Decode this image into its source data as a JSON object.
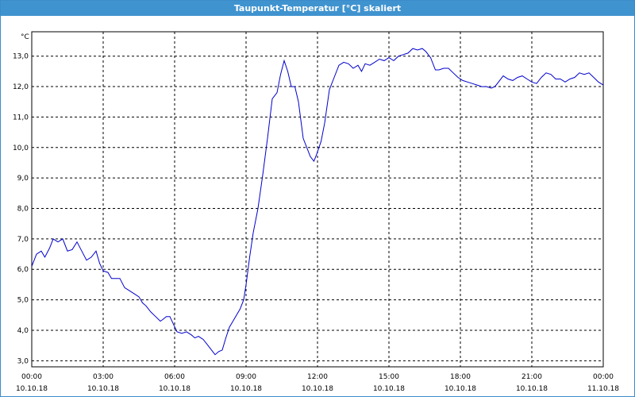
{
  "window": {
    "title": "Taupunkt-Temperatur [°C] skaliert"
  },
  "chart_data": {
    "type": "line",
    "title": "Taupunkt-Temperatur [°C] skaliert",
    "ylabel": "°C",
    "xlabel": "",
    "ylim": [
      2.8,
      13.8
    ],
    "xlim": [
      0,
      24
    ],
    "grid": true,
    "y_ticks": [
      "3,0",
      "4,0",
      "5,0",
      "6,0",
      "7,0",
      "8,0",
      "9,0",
      "10,0",
      "11,0",
      "12,0",
      "13,0"
    ],
    "x_ticks": [
      {
        "time": "00:00",
        "date": "10.10.18"
      },
      {
        "time": "03:00",
        "date": "10.10.18"
      },
      {
        "time": "06:00",
        "date": "10.10.18"
      },
      {
        "time": "09:00",
        "date": "10.10.18"
      },
      {
        "time": "12:00",
        "date": "10.10.18"
      },
      {
        "time": "15:00",
        "date": "10.10.18"
      },
      {
        "time": "18:00",
        "date": "10.10.18"
      },
      {
        "time": "21:00",
        "date": "10.10.18"
      },
      {
        "time": "00:00",
        "date": "11.10.18"
      }
    ],
    "colors": {
      "line": "#0000cc",
      "title_bar": "#3f93cf"
    },
    "series": [
      {
        "x": [
          0,
          0.2,
          0.4,
          0.55,
          0.75,
          0.9,
          1.1,
          1.3,
          1.5,
          1.7,
          1.9,
          2.1,
          2.3,
          2.5,
          2.7,
          2.85,
          3.0,
          3.2,
          3.35,
          3.5,
          3.7,
          3.9,
          4.1,
          4.3,
          4.5,
          4.65,
          4.8,
          5.0,
          5.2,
          5.4,
          5.5,
          5.65,
          5.8,
          5.95,
          6.1,
          6.3,
          6.5,
          6.7,
          6.85,
          7.0,
          7.2,
          7.4,
          7.6,
          7.7,
          7.85,
          8.0,
          8.15,
          8.3,
          8.45,
          8.6,
          8.75,
          8.9,
          9.0,
          9.15,
          9.3,
          9.5,
          9.7,
          9.9,
          10.1,
          10.3,
          10.45,
          10.6,
          10.75,
          10.9,
          11.05,
          11.2,
          11.4,
          11.55,
          11.7,
          11.85,
          11.95,
          12.15,
          12.3,
          12.5,
          12.7,
          12.9,
          13.1,
          13.3,
          13.5,
          13.7,
          13.85,
          14.0,
          14.2,
          14.4,
          14.6,
          14.8,
          15.0,
          15.2,
          15.4,
          15.6,
          15.8,
          16.0,
          16.2,
          16.4,
          16.55,
          16.75,
          16.95,
          17.1,
          17.3,
          17.5,
          17.7,
          17.9,
          18.1,
          18.3,
          18.5,
          18.7,
          18.9,
          19.1,
          19.3,
          19.45,
          19.6,
          19.8,
          20.0,
          20.2,
          20.4,
          20.6,
          20.8,
          21.0,
          21.2,
          21.4,
          21.6,
          21.8,
          22.0,
          22.2,
          22.4,
          22.6,
          22.8,
          23.0,
          23.2,
          23.4,
          23.6,
          23.8,
          24.0
        ],
        "values": [
          6.1,
          6.5,
          6.6,
          6.4,
          6.7,
          7.0,
          6.9,
          7.0,
          6.6,
          6.65,
          6.9,
          6.6,
          6.3,
          6.4,
          6.6,
          6.2,
          5.95,
          5.9,
          5.7,
          5.7,
          5.7,
          5.4,
          5.3,
          5.2,
          5.1,
          4.9,
          4.8,
          4.6,
          4.45,
          4.3,
          4.35,
          4.45,
          4.45,
          4.2,
          3.95,
          3.9,
          3.95,
          3.85,
          3.75,
          3.8,
          3.7,
          3.5,
          3.3,
          3.2,
          3.3,
          3.35,
          3.75,
          4.1,
          4.3,
          4.5,
          4.7,
          5.0,
          5.5,
          6.4,
          7.2,
          8.0,
          9.1,
          10.3,
          11.6,
          11.8,
          12.4,
          12.85,
          12.5,
          12.0,
          12.0,
          11.5,
          10.3,
          10.0,
          9.7,
          9.55,
          9.75,
          10.2,
          10.8,
          11.9,
          12.3,
          12.7,
          12.8,
          12.75,
          12.6,
          12.7,
          12.5,
          12.75,
          12.7,
          12.8,
          12.9,
          12.85,
          12.95,
          12.85,
          13.0,
          13.05,
          13.1,
          13.25,
          13.2,
          13.25,
          13.15,
          12.95,
          12.55,
          12.55,
          12.6,
          12.6,
          12.45,
          12.3,
          12.2,
          12.15,
          12.1,
          12.05,
          12.0,
          12.0,
          11.95,
          12.0,
          12.15,
          12.35,
          12.25,
          12.2,
          12.3,
          12.35,
          12.25,
          12.15,
          12.1,
          12.3,
          12.45,
          12.4,
          12.25,
          12.25,
          12.15,
          12.25,
          12.3,
          12.45,
          12.4,
          12.45,
          12.3,
          12.15,
          12.05
        ]
      }
    ]
  }
}
